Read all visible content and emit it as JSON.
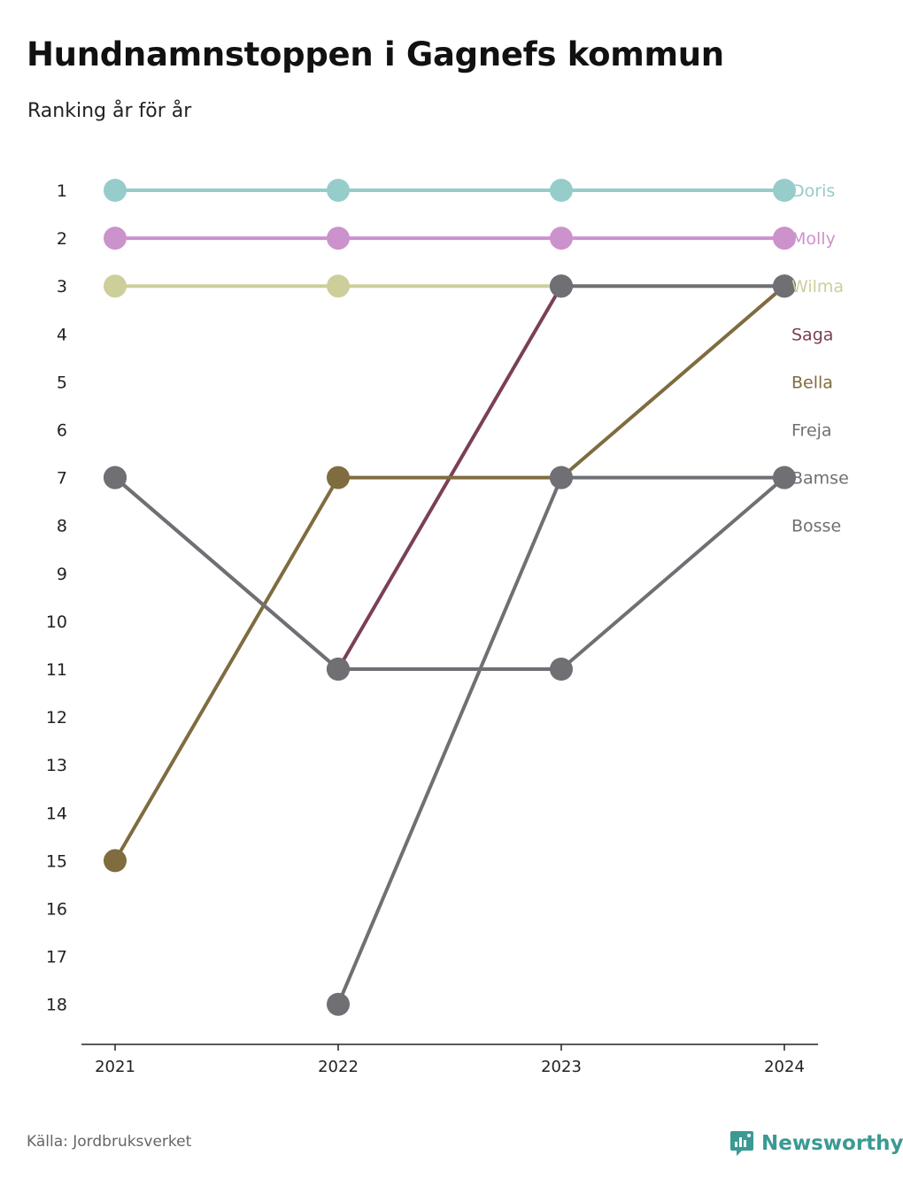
{
  "title": "Hundnamnstoppen i Gagnefs kommun",
  "subtitle": "Ranking år för år",
  "source": "Källa: Jordbruksverket",
  "brand": "Newsworthy",
  "brand_icon": "bar-chart-bubble-icon",
  "colors": {
    "Doris": "#96ccca",
    "Molly": "#cc92cc",
    "Wilma": "#cdcf9b",
    "Saga": "#7b3f58",
    "Bella": "#7f6c3f",
    "Freja": "#6f6f74",
    "Bamse": "#6f6f74",
    "Bosse": "#6f6f74",
    "brand": "#3b9a93"
  },
  "chart_data": {
    "type": "line",
    "x": [
      "2021",
      "2022",
      "2023",
      "2024"
    ],
    "y_ticks": [
      "1",
      "2",
      "3",
      "4",
      "5",
      "6",
      "7",
      "8",
      "9",
      "10",
      "11",
      "12",
      "13",
      "14",
      "15",
      "16",
      "17",
      "18"
    ],
    "ylim": [
      1,
      18
    ],
    "y_inverted": true,
    "grid": false,
    "series": [
      {
        "name": "Doris",
        "values": [
          1,
          1,
          1,
          1
        ]
      },
      {
        "name": "Molly",
        "values": [
          2,
          2,
          2,
          2
        ]
      },
      {
        "name": "Wilma",
        "values": [
          3,
          3,
          3,
          3
        ]
      },
      {
        "name": "Saga",
        "values": [
          7,
          11,
          3,
          null
        ]
      },
      {
        "name": "Bella",
        "values": [
          15,
          7,
          7,
          3
        ]
      },
      {
        "name": "Freja",
        "values": [
          null,
          18,
          7,
          7
        ]
      },
      {
        "name": "Bamse",
        "values": [
          7,
          11,
          11,
          7
        ]
      },
      {
        "name": "Bosse",
        "values": [
          null,
          null,
          3,
          3
        ]
      }
    ],
    "labels": [
      {
        "name": "Doris",
        "rank": 1
      },
      {
        "name": "Molly",
        "rank": 2
      },
      {
        "name": "Wilma",
        "rank": 3
      },
      {
        "name": "Saga",
        "rank": 4
      },
      {
        "name": "Bella",
        "rank": 5
      },
      {
        "name": "Freja",
        "rank": 6
      },
      {
        "name": "Bamse",
        "rank": 7
      },
      {
        "name": "Bosse",
        "rank": 8
      }
    ]
  }
}
